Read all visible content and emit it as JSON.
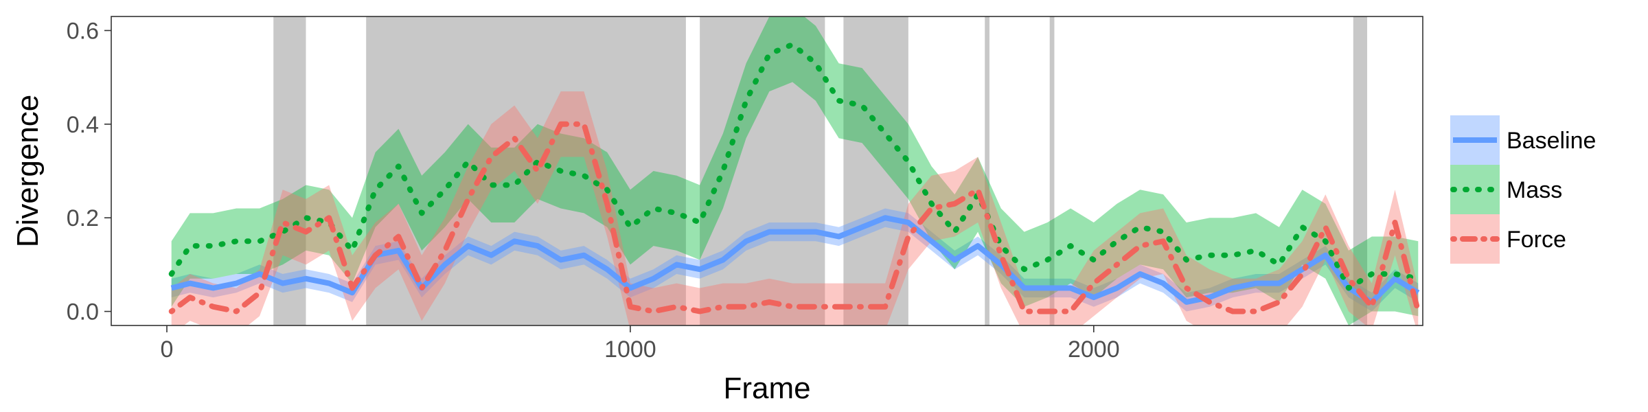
{
  "chart_data": {
    "type": "line",
    "xlabel": "Frame",
    "ylabel": "Divergence",
    "xlim": [
      -120,
      2710
    ],
    "ylim": [
      -0.03,
      0.63
    ],
    "xticks": [
      0,
      1000,
      2000
    ],
    "yticks": [
      0.0,
      0.2,
      0.4,
      0.6
    ],
    "ytick_labels": [
      "0.0",
      "0.2",
      "0.4",
      "0.6"
    ],
    "grid": false,
    "legend_position": "right",
    "shaded_regions": [
      [
        230,
        300
      ],
      [
        430,
        1120
      ],
      [
        1150,
        1420
      ],
      [
        1460,
        1600
      ],
      [
        1765,
        1775
      ],
      [
        1905,
        1915
      ],
      [
        2560,
        2590
      ]
    ],
    "x": [
      10,
      50,
      100,
      150,
      200,
      250,
      300,
      350,
      400,
      450,
      500,
      550,
      600,
      650,
      700,
      750,
      800,
      850,
      900,
      950,
      1000,
      1050,
      1100,
      1150,
      1200,
      1250,
      1300,
      1350,
      1400,
      1450,
      1500,
      1550,
      1600,
      1650,
      1700,
      1750,
      1800,
      1850,
      1900,
      1950,
      2000,
      2050,
      2100,
      2150,
      2200,
      2250,
      2300,
      2350,
      2400,
      2450,
      2500,
      2550,
      2600,
      2650,
      2700
    ],
    "series": [
      {
        "name": "Baseline",
        "color": "#619CFF",
        "line_style": "solid",
        "values": [
          0.05,
          0.06,
          0.05,
          0.06,
          0.08,
          0.06,
          0.07,
          0.06,
          0.04,
          0.12,
          0.13,
          0.05,
          0.1,
          0.14,
          0.12,
          0.15,
          0.14,
          0.11,
          0.12,
          0.09,
          0.05,
          0.07,
          0.1,
          0.09,
          0.11,
          0.15,
          0.17,
          0.17,
          0.17,
          0.16,
          0.18,
          0.2,
          0.19,
          0.15,
          0.11,
          0.14,
          0.1,
          0.05,
          0.05,
          0.05,
          0.03,
          0.05,
          0.08,
          0.06,
          0.02,
          0.03,
          0.05,
          0.06,
          0.06,
          0.09,
          0.12,
          0.05,
          0.02,
          0.07,
          0.04
        ],
        "lower": [
          0.03,
          0.04,
          0.03,
          0.04,
          0.06,
          0.04,
          0.05,
          0.04,
          0.02,
          0.1,
          0.11,
          0.03,
          0.08,
          0.12,
          0.1,
          0.13,
          0.12,
          0.09,
          0.1,
          0.07,
          0.03,
          0.05,
          0.08,
          0.07,
          0.09,
          0.13,
          0.15,
          0.15,
          0.15,
          0.14,
          0.16,
          0.18,
          0.17,
          0.13,
          0.09,
          0.12,
          0.08,
          0.03,
          0.03,
          0.03,
          0.01,
          0.03,
          0.06,
          0.04,
          0.0,
          0.01,
          0.03,
          0.04,
          0.04,
          0.07,
          0.1,
          0.03,
          0.0,
          0.05,
          0.02
        ],
        "upper": [
          0.07,
          0.08,
          0.07,
          0.08,
          0.1,
          0.08,
          0.09,
          0.08,
          0.06,
          0.14,
          0.15,
          0.07,
          0.12,
          0.16,
          0.14,
          0.17,
          0.16,
          0.13,
          0.14,
          0.11,
          0.07,
          0.09,
          0.12,
          0.11,
          0.13,
          0.17,
          0.19,
          0.19,
          0.19,
          0.18,
          0.2,
          0.22,
          0.21,
          0.17,
          0.13,
          0.16,
          0.12,
          0.07,
          0.07,
          0.07,
          0.05,
          0.07,
          0.1,
          0.08,
          0.04,
          0.05,
          0.07,
          0.08,
          0.08,
          0.11,
          0.14,
          0.07,
          0.04,
          0.09,
          0.06
        ]
      },
      {
        "name": "Mass",
        "color": "#00BA38",
        "line_style": "dotted",
        "values": [
          0.08,
          0.14,
          0.14,
          0.15,
          0.15,
          0.17,
          0.2,
          0.19,
          0.13,
          0.26,
          0.31,
          0.21,
          0.26,
          0.32,
          0.27,
          0.27,
          0.32,
          0.3,
          0.29,
          0.26,
          0.18,
          0.22,
          0.21,
          0.19,
          0.3,
          0.45,
          0.55,
          0.57,
          0.53,
          0.45,
          0.44,
          0.38,
          0.32,
          0.23,
          0.17,
          0.25,
          0.14,
          0.09,
          0.11,
          0.14,
          0.11,
          0.15,
          0.18,
          0.17,
          0.11,
          0.12,
          0.12,
          0.13,
          0.1,
          0.18,
          0.15,
          0.05,
          0.08,
          0.08,
          0.07
        ],
        "lower": [
          0.01,
          0.07,
          0.07,
          0.08,
          0.08,
          0.1,
          0.13,
          0.12,
          0.06,
          0.18,
          0.23,
          0.13,
          0.18,
          0.24,
          0.19,
          0.19,
          0.24,
          0.22,
          0.21,
          0.18,
          0.1,
          0.14,
          0.13,
          0.11,
          0.22,
          0.37,
          0.47,
          0.49,
          0.45,
          0.37,
          0.36,
          0.3,
          0.24,
          0.15,
          0.09,
          0.17,
          0.06,
          0.01,
          0.03,
          0.06,
          0.03,
          0.07,
          0.1,
          0.09,
          0.03,
          0.04,
          0.04,
          0.05,
          0.02,
          0.1,
          0.07,
          -0.03,
          0.0,
          0.0,
          -0.01
        ],
        "upper": [
          0.15,
          0.21,
          0.21,
          0.22,
          0.22,
          0.24,
          0.27,
          0.26,
          0.2,
          0.34,
          0.39,
          0.29,
          0.34,
          0.4,
          0.35,
          0.35,
          0.4,
          0.38,
          0.37,
          0.34,
          0.26,
          0.3,
          0.29,
          0.27,
          0.38,
          0.53,
          0.63,
          0.65,
          0.61,
          0.53,
          0.52,
          0.46,
          0.4,
          0.31,
          0.25,
          0.33,
          0.22,
          0.17,
          0.19,
          0.22,
          0.19,
          0.23,
          0.26,
          0.25,
          0.19,
          0.2,
          0.2,
          0.21,
          0.18,
          0.26,
          0.23,
          0.13,
          0.16,
          0.16,
          0.15
        ]
      },
      {
        "name": "Force",
        "color": "#F8766D",
        "line_style": "dotdash",
        "values": [
          0.0,
          0.03,
          0.01,
          0.0,
          0.04,
          0.19,
          0.17,
          0.2,
          0.05,
          0.12,
          0.16,
          0.05,
          0.13,
          0.24,
          0.33,
          0.37,
          0.3,
          0.4,
          0.4,
          0.23,
          0.01,
          0.0,
          0.01,
          0.0,
          0.01,
          0.01,
          0.02,
          0.01,
          0.01,
          0.01,
          0.01,
          0.01,
          0.16,
          0.22,
          0.23,
          0.26,
          0.12,
          0.0,
          0.0,
          0.0,
          0.06,
          0.1,
          0.14,
          0.15,
          0.05,
          0.02,
          0.0,
          0.0,
          0.02,
          0.08,
          0.18,
          0.07,
          0.01,
          0.19,
          0.0
        ],
        "lower": [
          -0.05,
          -0.02,
          -0.04,
          -0.05,
          -0.01,
          0.12,
          0.1,
          0.13,
          -0.02,
          0.05,
          0.09,
          -0.02,
          0.06,
          0.17,
          0.26,
          0.3,
          0.23,
          0.33,
          0.33,
          0.16,
          -0.04,
          -0.05,
          -0.04,
          -0.05,
          -0.04,
          -0.04,
          -0.03,
          -0.04,
          -0.04,
          -0.04,
          -0.04,
          -0.04,
          0.09,
          0.15,
          0.16,
          0.19,
          0.05,
          -0.05,
          -0.05,
          -0.05,
          -0.01,
          0.03,
          0.07,
          0.08,
          -0.02,
          -0.05,
          -0.05,
          -0.05,
          -0.05,
          0.01,
          0.11,
          0.0,
          -0.04,
          0.12,
          -0.05
        ],
        "upper": [
          0.05,
          0.08,
          0.06,
          0.05,
          0.09,
          0.26,
          0.24,
          0.27,
          0.12,
          0.19,
          0.23,
          0.12,
          0.2,
          0.31,
          0.4,
          0.44,
          0.37,
          0.47,
          0.47,
          0.3,
          0.06,
          0.05,
          0.06,
          0.05,
          0.06,
          0.06,
          0.07,
          0.06,
          0.06,
          0.06,
          0.06,
          0.06,
          0.23,
          0.29,
          0.3,
          0.33,
          0.19,
          0.05,
          0.05,
          0.05,
          0.13,
          0.17,
          0.21,
          0.22,
          0.12,
          0.09,
          0.07,
          0.07,
          0.09,
          0.15,
          0.25,
          0.14,
          0.06,
          0.26,
          0.05
        ]
      }
    ]
  }
}
